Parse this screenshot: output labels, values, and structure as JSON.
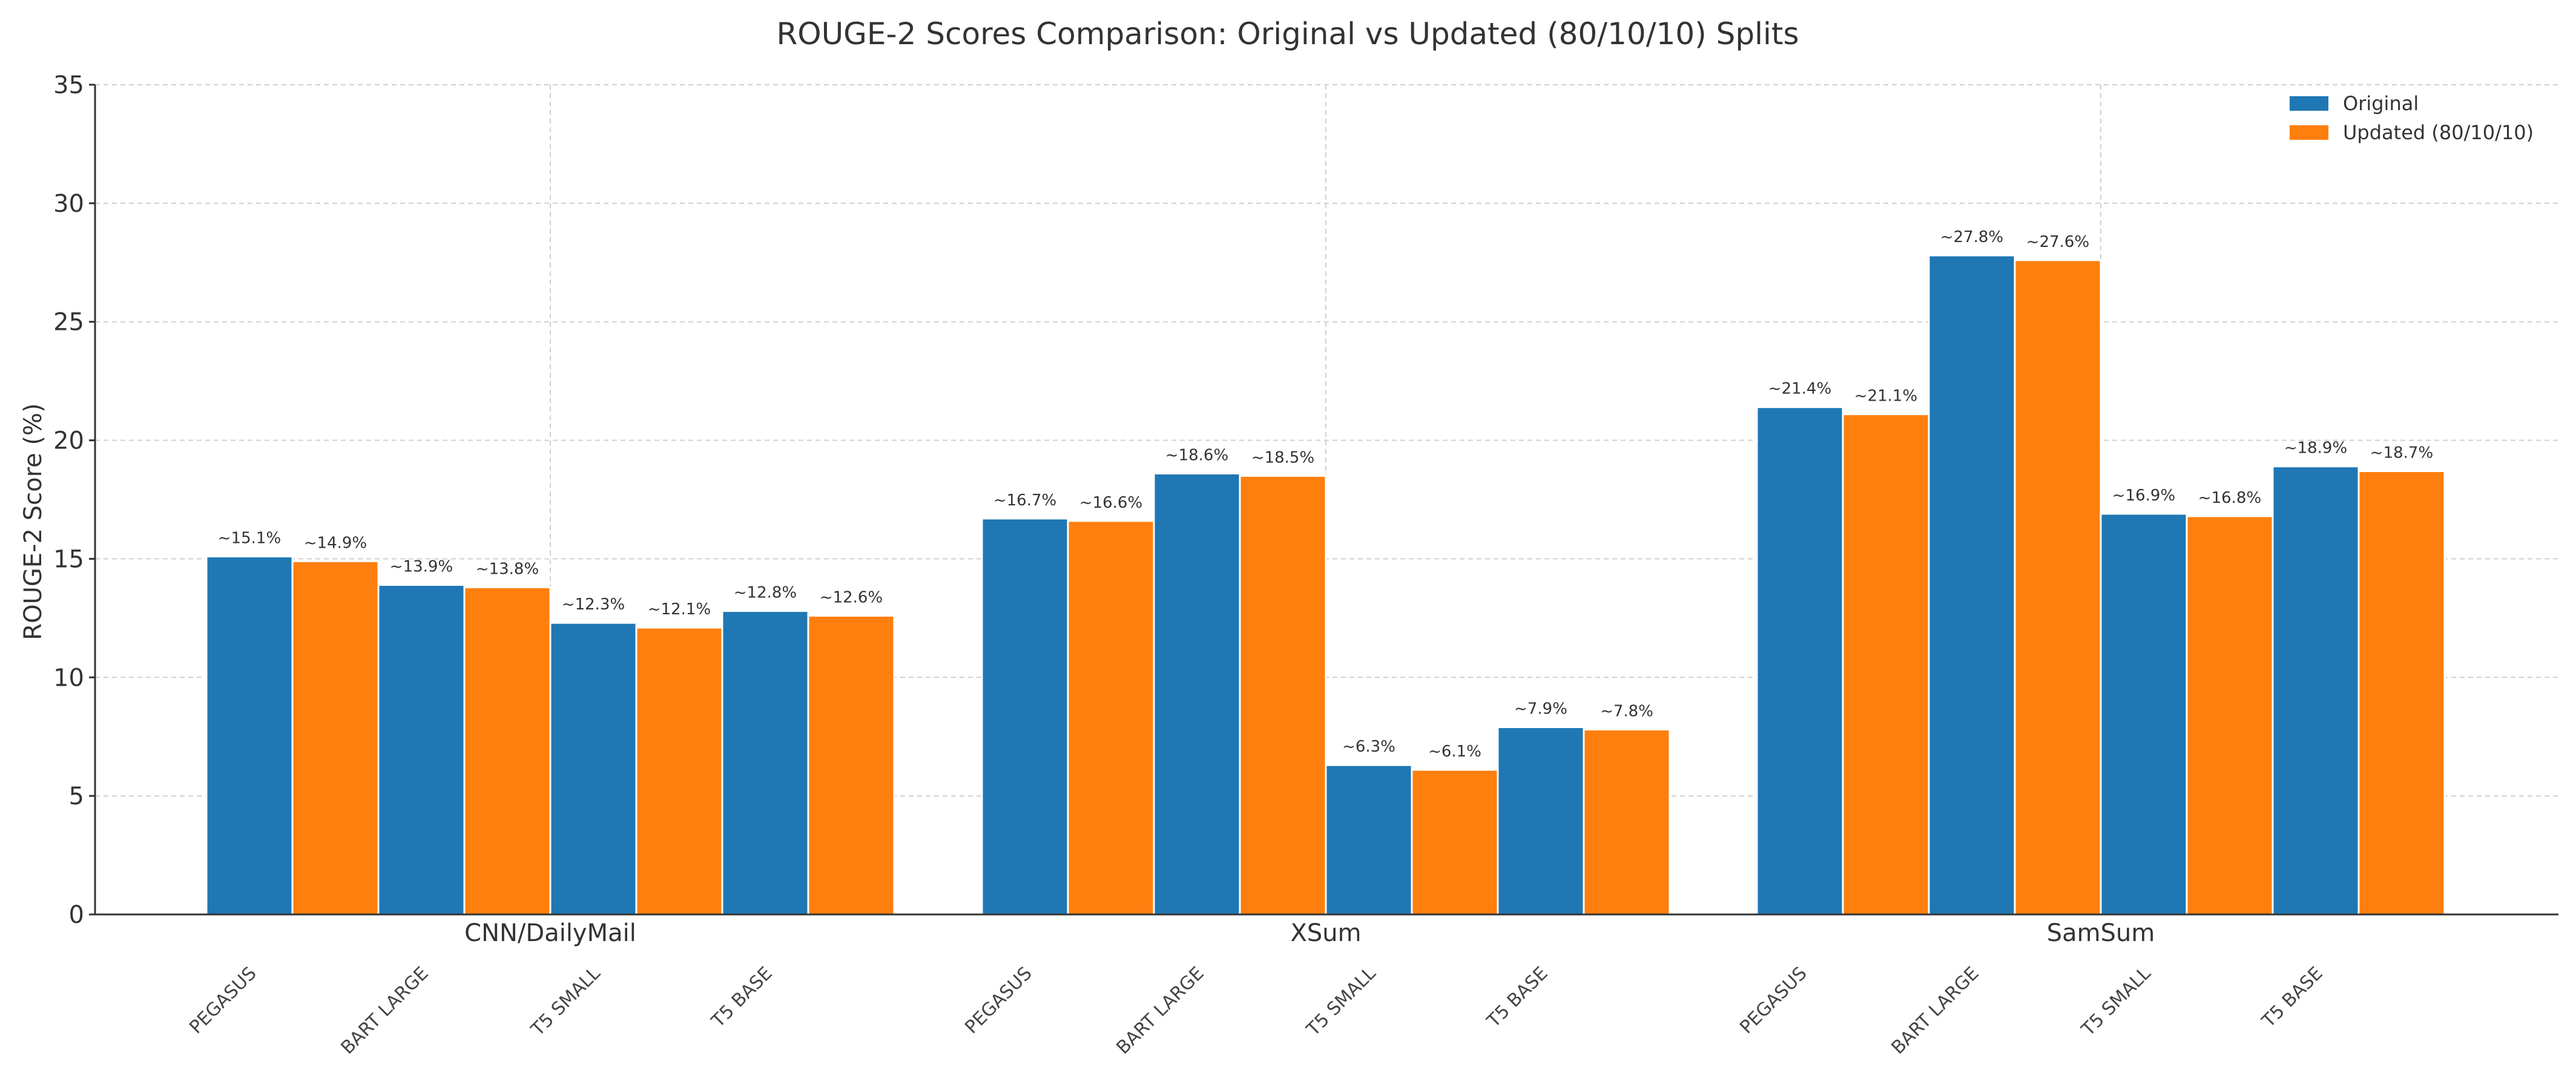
{
  "chart_data": {
    "type": "bar",
    "title": "ROUGE-2 Scores Comparison: Original vs Updated (80/10/10) Splits",
    "ylabel": "ROUGE-2 Score (%)",
    "xlabel": "",
    "ylim": [
      0,
      35
    ],
    "yticks": [
      0,
      5,
      10,
      15,
      20,
      25,
      30,
      35
    ],
    "grid": true,
    "legend_position": "top-right",
    "groups": [
      "CNN/DailyMail",
      "XSum",
      "SamSum"
    ],
    "models": [
      "PEGASUS",
      "BART LARGE",
      "T5 SMALL",
      "T5 BASE"
    ],
    "series": [
      {
        "name": "Original",
        "color": "#1f77b4",
        "values": [
          [
            15.1,
            13.9,
            12.3,
            12.8
          ],
          [
            16.7,
            18.6,
            6.3,
            7.9
          ],
          [
            21.4,
            27.8,
            16.9,
            18.9
          ]
        ],
        "labels": [
          [
            "~15.1%",
            "~13.9%",
            "~12.3%",
            "~12.8%"
          ],
          [
            "~16.7%",
            "~18.6%",
            "~6.3%",
            "~7.9%"
          ],
          [
            "~21.4%",
            "~27.8%",
            "~16.9%",
            "~18.9%"
          ]
        ]
      },
      {
        "name": "Updated (80/10/10)",
        "color": "#ff7f0e",
        "values": [
          [
            14.9,
            13.8,
            12.1,
            12.6
          ],
          [
            16.6,
            18.5,
            6.1,
            7.8
          ],
          [
            21.1,
            27.6,
            16.8,
            18.7
          ]
        ],
        "labels": [
          [
            "~14.9%",
            "~13.8%",
            "~12.1%",
            "~12.6%"
          ],
          [
            "~16.6%",
            "~18.5%",
            "~6.1%",
            "~7.8%"
          ],
          [
            "~21.1%",
            "~27.6%",
            "~16.8%",
            "~18.7%"
          ]
        ]
      }
    ]
  }
}
